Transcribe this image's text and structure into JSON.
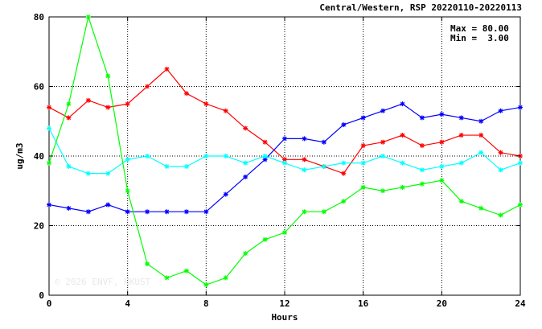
{
  "chart_data": {
    "type": "line",
    "title": "Central/Western, RSP 20220110-20220113",
    "xlabel": "Hours",
    "ylabel": "ug/m3",
    "xlim": [
      0,
      24
    ],
    "ylim": [
      0,
      80
    ],
    "xticks": [
      0,
      4,
      8,
      12,
      16,
      20,
      24
    ],
    "yticks": [
      0,
      20,
      40,
      60,
      80
    ],
    "x": [
      0,
      1,
      2,
      3,
      4,
      5,
      6,
      7,
      8,
      9,
      10,
      11,
      12,
      13,
      14,
      15,
      16,
      17,
      18,
      19,
      20,
      21,
      22,
      23,
      24
    ],
    "grid": "dotted",
    "stats": {
      "max_label": "Max = 80.00",
      "min_label": "Min =  3.00"
    },
    "watermark": "© 2026 ENVF, HKUST",
    "series": [
      {
        "color": "#ff0000",
        "values": [
          54,
          51,
          56,
          54,
          55,
          60,
          65,
          58,
          55,
          53,
          48,
          44,
          39,
          39,
          37,
          35,
          43,
          44,
          46,
          43,
          44,
          46,
          46,
          41,
          40
        ]
      },
      {
        "color": "#0000ff",
        "values": [
          26,
          25,
          24,
          26,
          24,
          24,
          24,
          24,
          24,
          29,
          34,
          39,
          45,
          45,
          44,
          49,
          51,
          53,
          55,
          51,
          52,
          51,
          50,
          53,
          54
        ]
      },
      {
        "color": "#00ffff",
        "values": [
          48,
          37,
          35,
          35,
          39,
          40,
          37,
          37,
          40,
          40,
          38,
          40,
          38,
          36,
          37,
          38,
          38,
          40,
          38,
          36,
          37,
          38,
          41,
          36,
          38
        ]
      },
      {
        "color": "#00ff00",
        "values": [
          38,
          55,
          80,
          63,
          30,
          9,
          5,
          7,
          3,
          5,
          12,
          16,
          18,
          24,
          24,
          27,
          31,
          30,
          31,
          32,
          33,
          27,
          25,
          23,
          26
        ]
      }
    ]
  }
}
